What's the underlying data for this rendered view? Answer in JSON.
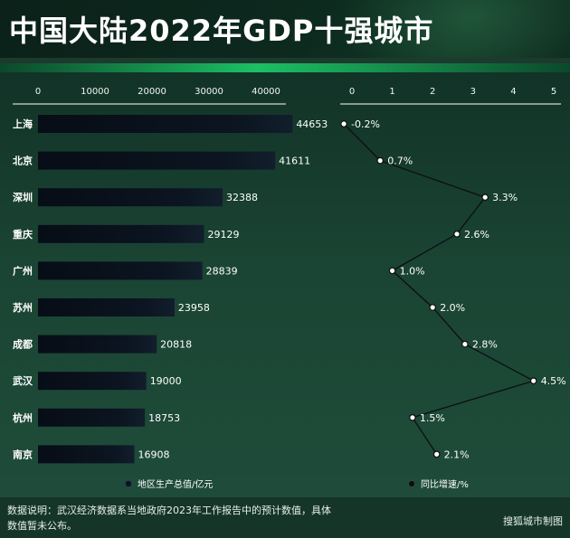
{
  "title": "中国大陆2022年GDP十强城市",
  "note": "数据说明：武汉经济数据系当地政府2023年工作报告中的预计数值，具体数值暂未公布。",
  "credit": "搜狐城市制图",
  "chart_data": [
    {
      "type": "bar",
      "orientation": "horizontal",
      "categories": [
        "上海",
        "北京",
        "深圳",
        "重庆",
        "广州",
        "苏州",
        "成都",
        "武汉",
        "杭州",
        "南京"
      ],
      "values": [
        44653,
        41611,
        32388,
        29129,
        28839,
        23958,
        20818,
        19000,
        18753,
        16908
      ],
      "xlim": [
        0,
        45000
      ],
      "xticks": [
        0,
        10000,
        20000,
        30000,
        40000
      ],
      "axis_position": "top",
      "legend": "地区生产总值/亿元",
      "bar_color": "#0b1420"
    },
    {
      "type": "line",
      "categories": [
        "上海",
        "北京",
        "深圳",
        "重庆",
        "广州",
        "苏州",
        "成都",
        "武汉",
        "杭州",
        "南京"
      ],
      "values": [
        -0.2,
        0.7,
        3.3,
        2.6,
        1.0,
        2.0,
        2.8,
        4.5,
        1.5,
        2.1
      ],
      "labels": [
        "-0.2%",
        "0.7%",
        "3.3%",
        "2.6%",
        "1.0%",
        "2.0%",
        "2.8%",
        "4.5%",
        "1.5%",
        "2.1%"
      ],
      "xlim": [
        0,
        5
      ],
      "xticks": [
        "0",
        "1",
        "2",
        "3",
        "4",
        "5"
      ],
      "axis_position": "top",
      "legend": "同比增速/%"
    }
  ]
}
